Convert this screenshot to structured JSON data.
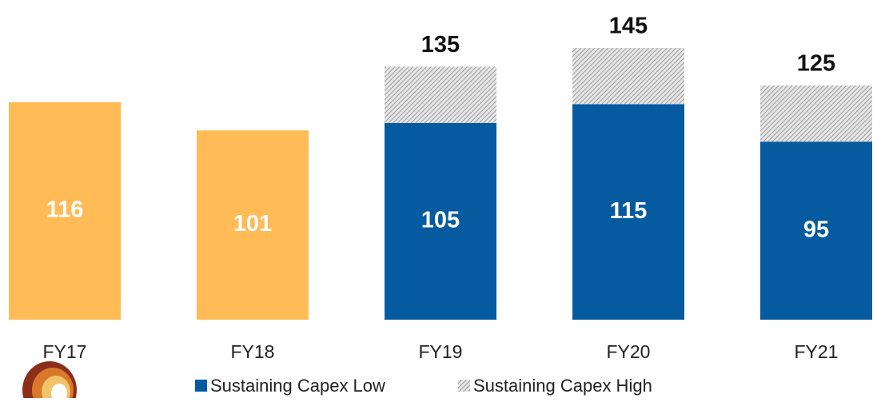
{
  "chart_data": {
    "type": "stacked-bar",
    "categories": [
      "FY17",
      "FY18",
      "FY19",
      "FY20",
      "FY21"
    ],
    "series": [
      {
        "name": "Sustaining Capex Low",
        "color": "#065aa0",
        "colors": [
          "#ffbb55",
          "#ffbb55",
          "#065aa0",
          "#065aa0",
          "#065aa0"
        ],
        "values": [
          116,
          101,
          105,
          115,
          95
        ]
      },
      {
        "name": "Sustaining Capex High",
        "color": "hatch",
        "values": [
          null,
          null,
          30,
          30,
          30
        ]
      }
    ],
    "totals": [
      null,
      null,
      135,
      145,
      125
    ]
  }
}
